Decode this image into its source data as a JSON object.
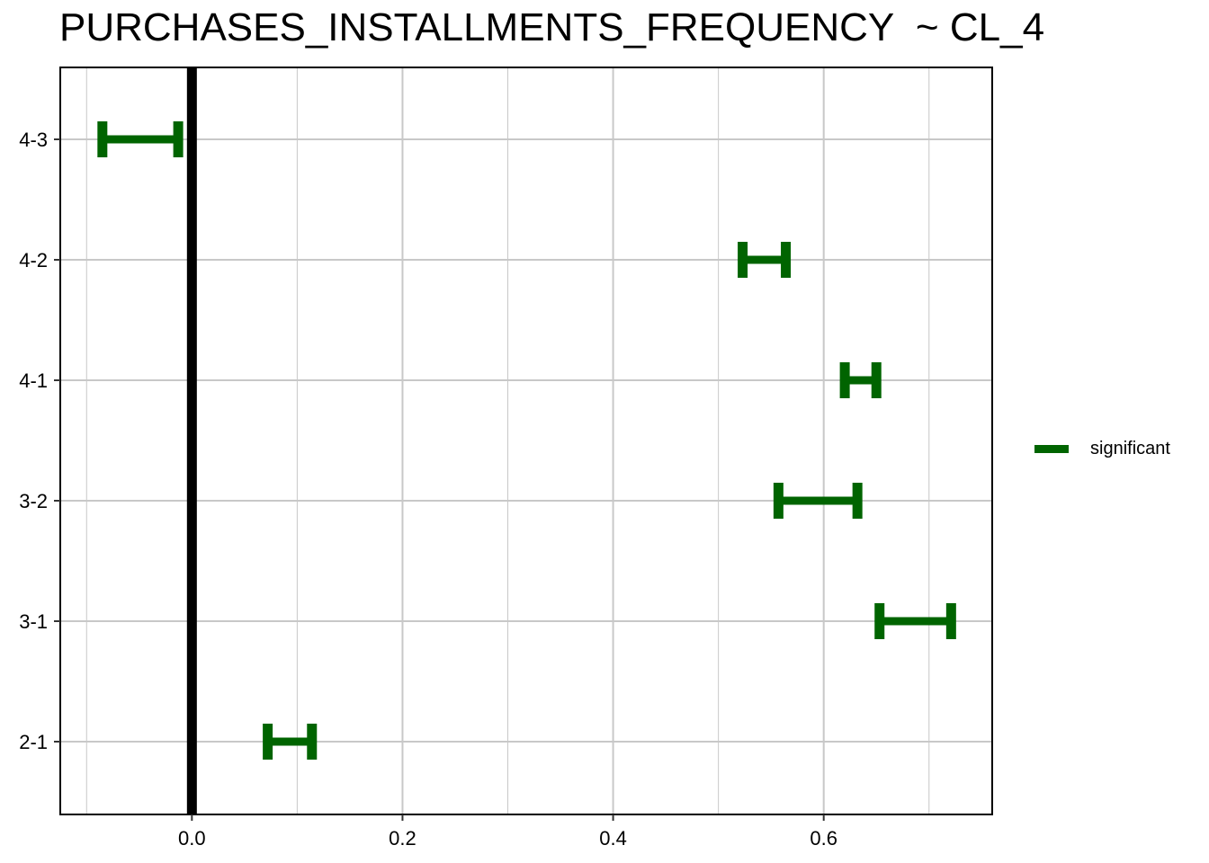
{
  "chart_data": {
    "type": "errorbar",
    "title": "PURCHASES_INSTALLMENTS_FREQUENCY  ~ CL_4",
    "xlabel": "",
    "ylabel": "",
    "xlim": [
      -0.125,
      0.76
    ],
    "x_ticks": [
      0.0,
      0.2,
      0.4,
      0.6
    ],
    "x_tick_labels": [
      "0.0",
      "0.2",
      "0.4",
      "0.6"
    ],
    "reference_line": 0.0,
    "categories": [
      "4-3",
      "4-2",
      "4-1",
      "3-2",
      "3-1",
      "2-1"
    ],
    "intervals": [
      {
        "label": "4-3",
        "lwr": -0.085,
        "upr": -0.013,
        "status": "significant"
      },
      {
        "label": "4-2",
        "lwr": 0.523,
        "upr": 0.564,
        "status": "significant"
      },
      {
        "label": "4-1",
        "lwr": 0.62,
        "upr": 0.65,
        "status": "significant"
      },
      {
        "label": "3-2",
        "lwr": 0.557,
        "upr": 0.632,
        "status": "significant"
      },
      {
        "label": "3-1",
        "lwr": 0.653,
        "upr": 0.721,
        "status": "significant"
      },
      {
        "label": "2-1",
        "lwr": 0.072,
        "upr": 0.114,
        "status": "significant"
      }
    ],
    "grid": true,
    "legend": {
      "position": "right",
      "entries": [
        {
          "label": "significant",
          "color": "#006400"
        }
      ]
    },
    "colors": {
      "significant": "#006400",
      "reference_line": "#000000",
      "grid": "#c8c8c8"
    }
  }
}
